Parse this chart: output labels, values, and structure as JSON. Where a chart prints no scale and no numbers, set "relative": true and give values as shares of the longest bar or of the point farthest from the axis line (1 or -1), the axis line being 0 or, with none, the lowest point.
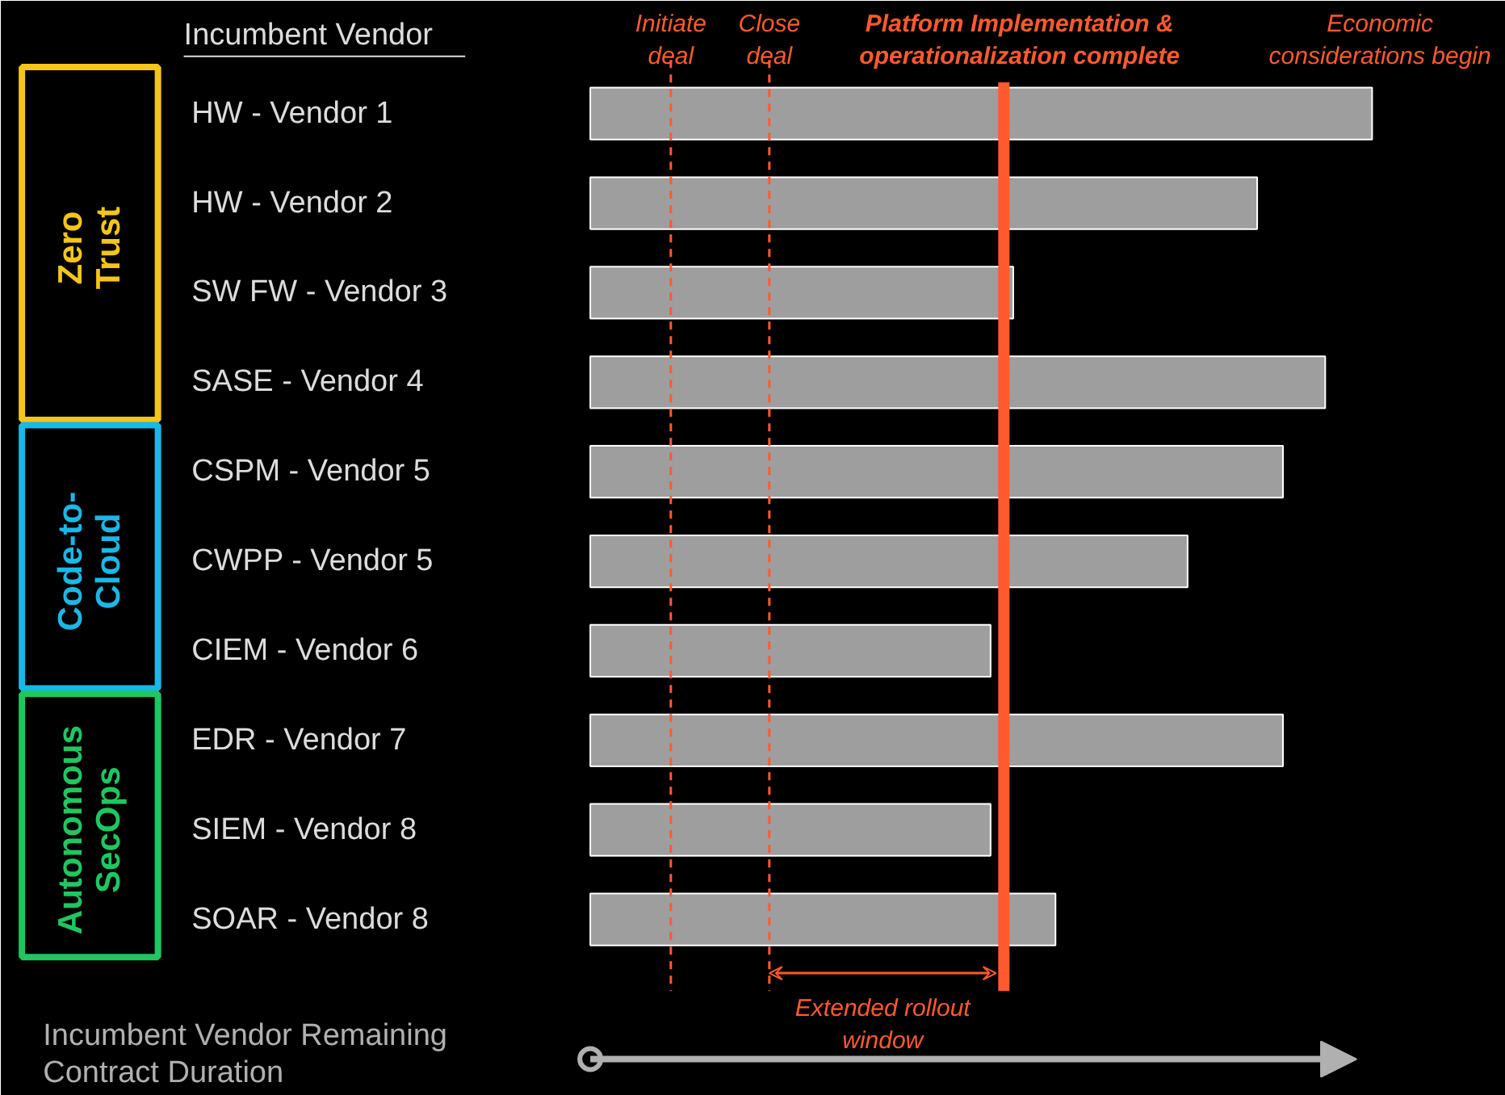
{
  "chart_data": {
    "type": "bar",
    "orientation": "horizontal",
    "relative": true,
    "ylabel": "Incumbent Vendor",
    "xlabel": "Incumbent Vendor Remaining\nContract Duration",
    "categories": [
      "HW - Vendor 1",
      "HW - Vendor 2",
      "SW FW - Vendor 3",
      "SASE - Vendor 4",
      "CSPM - Vendor 5",
      "CWPP - Vendor 5",
      "CIEM - Vendor 6",
      "EDR - Vendor 7",
      "SIEM - Vendor 8",
      "SOAR - Vendor 8"
    ],
    "values": [
      1,
      0.853,
      0.541,
      0.94,
      0.886,
      0.764,
      0.512,
      0.886,
      0.512,
      0.595
    ],
    "color": "#9e9e9e",
    "ref_lines": [
      {
        "axis": "x",
        "value": 0.103,
        "label": "Initiate\ndeal",
        "color": "#ff5a2e",
        "line_style": "dashed"
      },
      {
        "axis": "x",
        "value": 0.229,
        "label": "Close\ndeal",
        "color": "#ff5a2e",
        "line_style": "dashed"
      },
      {
        "axis": "x",
        "value": 0.529,
        "label": "Platform Implementation &\noperationalization complete",
        "color": "#ff5a2e",
        "line_style": "solid"
      }
    ],
    "annotations": [
      "Zero\nTrust",
      "Code-to-\nCloud",
      "Autonomous\nSecOps",
      "Economic\nconsiderations begin",
      "Extended rollout\nwindow"
    ]
  }
}
